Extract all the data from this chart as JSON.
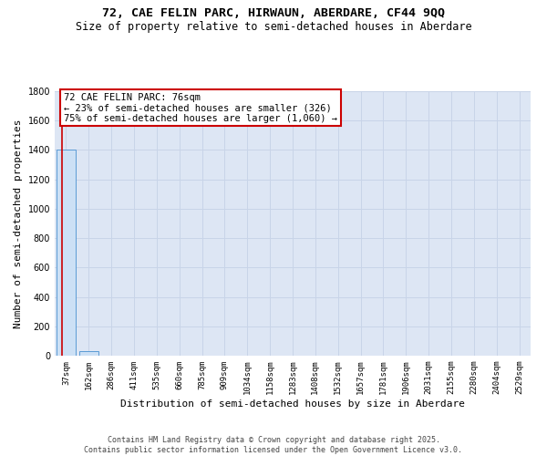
{
  "title": "72, CAE FELIN PARC, HIRWAUN, ABERDARE, CF44 9QQ",
  "subtitle": "Size of property relative to semi-detached houses in Aberdare",
  "xlabel": "Distribution of semi-detached houses by size in Aberdare",
  "ylabel": "Number of semi-detached properties",
  "categories": [
    "37sqm",
    "162sqm",
    "286sqm",
    "411sqm",
    "535sqm",
    "660sqm",
    "785sqm",
    "909sqm",
    "1034sqm",
    "1158sqm",
    "1283sqm",
    "1408sqm",
    "1532sqm",
    "1657sqm",
    "1781sqm",
    "1906sqm",
    "2031sqm",
    "2155sqm",
    "2280sqm",
    "2404sqm",
    "2529sqm"
  ],
  "values": [
    1400,
    30,
    0,
    0,
    0,
    0,
    0,
    0,
    0,
    0,
    0,
    0,
    0,
    0,
    0,
    0,
    0,
    0,
    0,
    0,
    0
  ],
  "bar_color": "#cce0f5",
  "bar_edge_color": "#5b9bd5",
  "annotation_text": "72 CAE FELIN PARC: 76sqm\n← 23% of semi-detached houses are smaller (326)\n75% of semi-detached houses are larger (1,060) →",
  "annotation_box_color": "#ffffff",
  "annotation_box_edge_color": "#cc0000",
  "vline_color": "#cc0000",
  "ylim": [
    0,
    1800
  ],
  "yticks": [
    0,
    200,
    400,
    600,
    800,
    1000,
    1200,
    1400,
    1600,
    1800
  ],
  "grid_color": "#c8d4e8",
  "background_color": "#dde6f4",
  "footer": "Contains HM Land Registry data © Crown copyright and database right 2025.\nContains public sector information licensed under the Open Government Licence v3.0.",
  "title_fontsize": 9.5,
  "subtitle_fontsize": 8.5,
  "tick_fontsize": 6.5,
  "ylabel_fontsize": 8,
  "xlabel_fontsize": 8,
  "annotation_fontsize": 7.5,
  "footer_fontsize": 6
}
